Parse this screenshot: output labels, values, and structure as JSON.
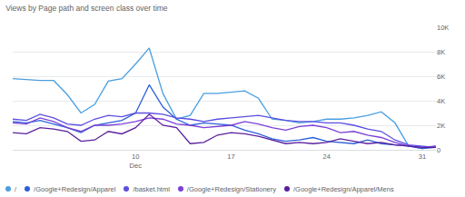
{
  "chart_data": {
    "type": "line",
    "title": "Views by Page path and screen class over time",
    "categories": [
      null,
      null,
      null,
      null,
      null,
      null,
      null,
      null,
      null,
      "10 Dec",
      null,
      null,
      null,
      null,
      null,
      null,
      "17",
      null,
      null,
      null,
      null,
      null,
      null,
      "24",
      null,
      null,
      null,
      null,
      null,
      null,
      "31",
      null
    ],
    "series": [
      {
        "name": "/",
        "color": "#4a9fe0",
        "values": [
          5800,
          5700,
          5650,
          5650,
          4500,
          3000,
          3700,
          5600,
          5800,
          7000,
          8300,
          4600,
          2500,
          2800,
          4600,
          4600,
          4700,
          4800,
          4200,
          2500,
          2400,
          2200,
          2300,
          2500,
          2500,
          2600,
          2800,
          3100,
          2200,
          300,
          100,
          300
        ]
      },
      {
        "name": "/Google+Redesign/Apparel",
        "color": "#2c5fd9",
        "values": [
          2300,
          2200,
          2400,
          2100,
          1800,
          1400,
          2000,
          2200,
          2400,
          3000,
          5300,
          3500,
          2500,
          2000,
          2200,
          2100,
          2000,
          1600,
          1300,
          900,
          700,
          800,
          1000,
          700,
          600,
          500,
          800,
          500,
          400,
          300,
          100,
          200
        ]
      },
      {
        "name": "/basket.html",
        "color": "#5b4ee0",
        "values": [
          2500,
          2400,
          2900,
          2600,
          2100,
          2000,
          2500,
          2800,
          2700,
          3000,
          3000,
          2900,
          2600,
          2500,
          2300,
          2500,
          2600,
          2700,
          2800,
          2600,
          2400,
          2300,
          2300,
          2200,
          2200,
          2000,
          1700,
          1500,
          800,
          400,
          300,
          200
        ]
      },
      {
        "name": "/Google+Redesign/Stationery",
        "color": "#7b3fd6",
        "values": [
          2200,
          2100,
          2600,
          2300,
          1800,
          1500,
          2000,
          2000,
          2100,
          2300,
          2600,
          2500,
          2100,
          2000,
          1800,
          1900,
          2000,
          2300,
          2100,
          1800,
          1600,
          1900,
          2000,
          1800,
          1400,
          1500,
          1200,
          1000,
          600,
          300,
          200,
          300
        ]
      },
      {
        "name": "/Google+Redesign/Apparel/Mens",
        "color": "#5a1f9e",
        "values": [
          1400,
          1300,
          1800,
          1700,
          1500,
          700,
          800,
          1500,
          1300,
          1800,
          2900,
          2000,
          1800,
          500,
          600,
          1200,
          1400,
          1300,
          1100,
          800,
          500,
          600,
          500,
          600,
          900,
          700,
          500,
          600,
          400,
          300,
          200,
          200
        ]
      }
    ],
    "ylim": [
      0,
      10000
    ],
    "yticks": [
      0,
      {
        "value": 2000,
        "label": "2K"
      },
      {
        "value": 4000,
        "label": "4K"
      },
      {
        "value": 6000,
        "label": "6K"
      },
      {
        "value": 8000,
        "label": "8K"
      },
      {
        "value": 10000,
        "label": "10K"
      }
    ],
    "grid": true,
    "legend": "bottom"
  }
}
